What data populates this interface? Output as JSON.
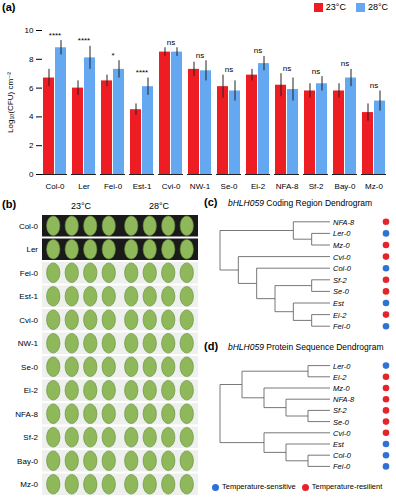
{
  "chart_data": [
    {
      "type": "bar",
      "panel": "(a)",
      "y_label": "Log₁₀(CFU) cm⁻²",
      "categories": [
        "Col-0",
        "Ler",
        "Fei-0",
        "Est-1",
        "Cvi-0",
        "NW-1",
        "Se-0",
        "Ei-2",
        "NFA-8",
        "Sf-2",
        "Bay-0",
        "Mz-0"
      ],
      "series": [
        {
          "name": "23°C",
          "color": "#ee1d23",
          "values": [
            6.7,
            6.0,
            6.5,
            4.5,
            8.5,
            7.3,
            6.1,
            6.9,
            6.2,
            5.8,
            5.8,
            4.3
          ],
          "errors": [
            0.6,
            0.5,
            0.4,
            0.4,
            0.3,
            0.5,
            0.8,
            0.4,
            0.8,
            0.5,
            0.5,
            0.6
          ]
        },
        {
          "name": "28°C",
          "color": "#63a8f0",
          "values": [
            8.8,
            8.1,
            7.3,
            6.1,
            8.5,
            7.2,
            5.8,
            7.7,
            5.9,
            6.3,
            6.7,
            5.1
          ],
          "errors": [
            0.5,
            0.8,
            0.6,
            0.6,
            0.3,
            0.7,
            0.7,
            0.5,
            0.8,
            0.5,
            0.6,
            0.7
          ]
        }
      ],
      "significance": [
        "****",
        "****",
        "*",
        "****",
        "ns",
        "ns",
        "ns",
        "ns",
        "ns",
        "ns",
        "ns",
        "ns"
      ],
      "ylim": [
        0,
        10
      ],
      "yticks": [
        0,
        2,
        4,
        6,
        8,
        10
      ],
      "grid": false,
      "legend": "top-right"
    },
    {
      "type": "image_grid",
      "panel": "(b)",
      "columns": [
        "23°C",
        "28°C"
      ],
      "rows": [
        "Col-0",
        "Ler",
        "Fei-0",
        "Est-1",
        "Cvi-0",
        "NW-1",
        "Se-0",
        "Ei-2",
        "NFA-8",
        "Sf-2",
        "Bay-0",
        "Mz-0"
      ]
    },
    {
      "type": "dendrogram",
      "panel": "(c)",
      "title": "bHLH059 Coding Region Dendrogram",
      "tree": [
        [
          "NFA-8",
          [
            "Ler-0",
            "Mz-0"
          ]
        ],
        [
          "Cvi-0",
          [
            "Col-0",
            [
              [
                "Sf-2",
                "Se-0"
              ],
              [
                "Est",
                [
                  "Ei-2",
                  "Fei-0"
                ]
              ]
            ]
          ]
        ]
      ],
      "leaf_groups": {
        "NFA-8": "Temperature-resilient",
        "Ler-0": "Temperature-sensitive",
        "Mz-0": "Temperature-resilient",
        "Cvi-0": "Temperature-resilient",
        "Col-0": "Temperature-sensitive",
        "Sf-2": "Temperature-resilient",
        "Se-0": "Temperature-resilient",
        "Est": "Temperature-sensitive",
        "Ei-2": "Temperature-resilient",
        "Fei-0": "Temperature-sensitive"
      }
    },
    {
      "type": "dendrogram",
      "panel": "(d)",
      "title": "bHLH059 Protein Sequence Dendrogram",
      "tree": [
        [
          [
            "Ler-0",
            "Ei-2"
          ],
          [
            "Mz-0",
            [
              "NFA-8",
              [
                "Sf-2",
                "Se-0"
              ]
            ]
          ]
        ],
        [
          "Cvi-0",
          [
            "Est",
            [
              "Col-0",
              "Fei-0"
            ]
          ]
        ]
      ],
      "leaf_groups": {
        "Ler-0": "Temperature-sensitive",
        "Ei-2": "Temperature-resilient",
        "Mz-0": "Temperature-resilient",
        "NFA-8": "Temperature-resilient",
        "Sf-2": "Temperature-resilient",
        "Se-0": "Temperature-resilient",
        "Cvi-0": "Temperature-resilient",
        "Est": "Temperature-sensitive",
        "Col-0": "Temperature-sensitive",
        "Fei-0": "Temperature-sensitive"
      }
    }
  ],
  "groups": [
    {
      "name": "Temperature-sensitive",
      "color": "#2f72d6"
    },
    {
      "name": "Temperature-resilient",
      "color": "#e3242b"
    }
  ]
}
